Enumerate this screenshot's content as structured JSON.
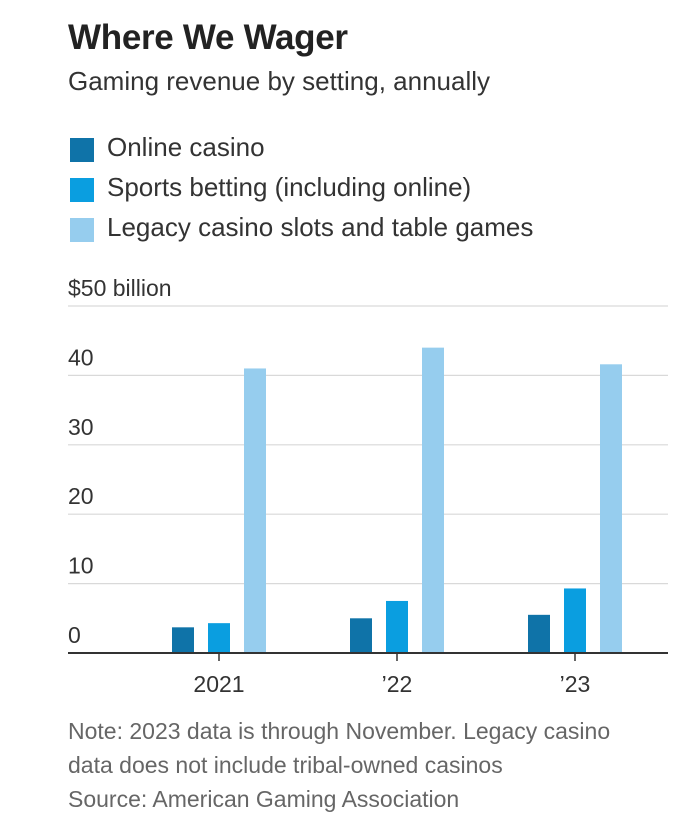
{
  "title": "Where We Wager",
  "subtitle": "Gaming revenue by setting, annually",
  "notes": {
    "line1": "Note: 2023 data is through November. Legacy casino",
    "line2": "data does not include tribal-owned casinos",
    "source": "Source: American Gaming Association"
  },
  "colors": {
    "online_casino": "#0f73a8",
    "sports_betting": "#0a9ee0",
    "legacy_casino": "#96cdee",
    "grid": "#d9d9d9",
    "axis": "#333333",
    "text": "#333333"
  },
  "chart_data": {
    "type": "bar",
    "categories": [
      "2021",
      "’22",
      "’23"
    ],
    "series": [
      {
        "name": "Online casino",
        "color": "#0f73a8",
        "values": [
          3.7,
          5.0,
          5.5
        ]
      },
      {
        "name": "Sports betting (including online)",
        "color": "#0a9ee0",
        "values": [
          4.3,
          7.5,
          9.3
        ]
      },
      {
        "name": "Legacy casino slots and table games",
        "color": "#96cdee",
        "values": [
          41.0,
          44.0,
          41.6
        ]
      }
    ],
    "ylim": [
      0,
      50
    ],
    "yticks": [
      0,
      10,
      20,
      30,
      40,
      50
    ],
    "ytick_labels": [
      "0",
      "10",
      "20",
      "30",
      "40",
      "$50 billion"
    ],
    "grid": true,
    "legend_position": "top-left"
  }
}
